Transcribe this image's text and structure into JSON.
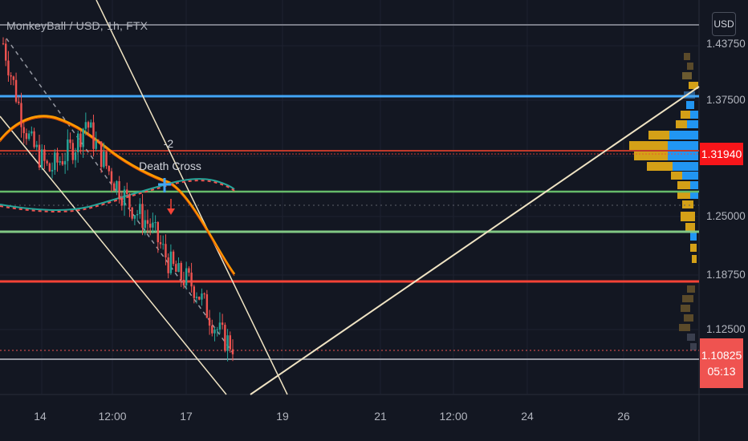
{
  "header": {
    "symbol_title": "MonkeyBall / USD, 1h, FTX",
    "currency_button": "USD"
  },
  "price_axis": {
    "ticks": [
      "1.43750",
      "1.37500",
      "1.25000",
      "1.18750",
      "1.12500"
    ],
    "current_price_badge": "1.31940",
    "last_price_badge": "1.10825",
    "countdown": "05:13"
  },
  "time_axis": {
    "ticks": [
      "14",
      "12:00",
      "17",
      "19",
      "21",
      "12:00",
      "24",
      "26"
    ]
  },
  "annotations": {
    "death_cross_value": "-2",
    "death_cross_label": "Death Cross"
  },
  "colors": {
    "background": "#131722",
    "up": "#26a69a",
    "down": "#ef5350",
    "ma_fast": "#ff9800",
    "ma_slow": "#ffb74d",
    "blue_line": "#42a5f5",
    "green_line": "#66bb6a",
    "red_line": "#f44336",
    "trend_line": "#efe3c3",
    "vp_up": "#2196f3",
    "vp_down": "#d4a017"
  },
  "chart_data": {
    "type": "candlestick",
    "title": "MonkeyBall / USD, 1h, FTX",
    "ylim": [
      1.06,
      1.465
    ],
    "horizontal_levels": [
      {
        "price": 1.4511,
        "color": "#787b86"
      },
      {
        "price": 1.38,
        "color": "#42a5f5"
      },
      {
        "price": 1.3194,
        "color": "#f44336"
      },
      {
        "price": 1.2715,
        "color": "#66bb6a"
      },
      {
        "price": 1.2325,
        "color": "#66bb6a"
      },
      {
        "price": 1.1815,
        "color": "#f44336"
      },
      {
        "price": 1.1075,
        "color": "#9598a1"
      }
    ],
    "candles_approx": [
      1.44,
      1.4,
      1.36,
      1.33,
      1.315,
      1.3,
      1.31,
      1.32,
      1.33,
      1.355,
      1.33,
      1.31,
      1.29,
      1.275,
      1.26,
      1.25,
      1.24,
      1.22,
      1.2,
      1.185,
      1.18,
      1.17,
      1.15,
      1.13,
      1.115,
      1.108
    ],
    "last_price": 1.10825
  }
}
